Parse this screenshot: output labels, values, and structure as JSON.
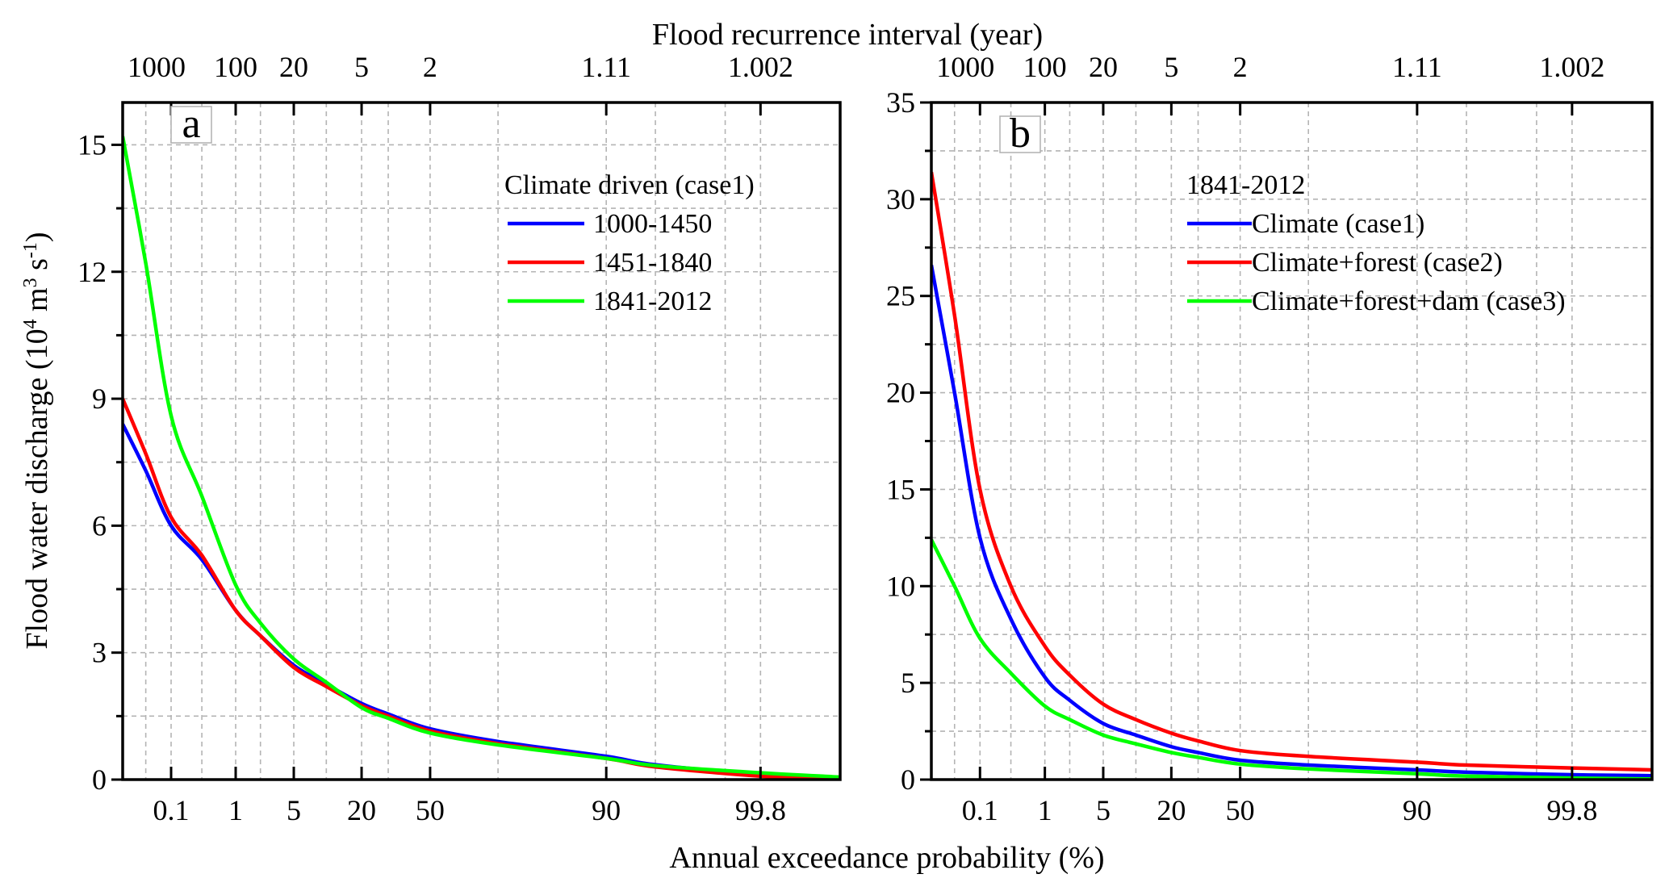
{
  "figure": {
    "top_axis_title": "Flood recurrence interval (year)",
    "bottom_axis_title": "Annual exceedance probability (%)",
    "y_axis_title": "Flood water discharge (10",
    "y_axis_title_sup1": "4",
    "y_axis_title_mid": " m",
    "y_axis_title_sup2": "3",
    "y_axis_title_mid2": " s",
    "y_axis_title_sup3": "-1",
    "y_axis_title_end": ")"
  },
  "colors": {
    "blue": "#0000ff",
    "red": "#ff0000",
    "green": "#00ff00",
    "grid": "#b4b4b4",
    "axis": "#000000"
  },
  "chart_data": [
    {
      "type": "line",
      "panel": "a",
      "legend_title": "Climate driven (case1)",
      "legend_placement": "top-right",
      "xlabel": "Annual exceedance probability (%)",
      "x_top_label": "Flood recurrence interval (year)",
      "ylabel": "Flood water discharge (10^4 m^3 s^-1)",
      "x_scale": "probability",
      "x_ticks": [
        0.1,
        1,
        5,
        20,
        50,
        90,
        99.8
      ],
      "x_tick_labels": [
        "0.1",
        "1",
        "5",
        "20",
        "50",
        "90",
        "99.8"
      ],
      "x_top_ticks": [
        0.1,
        1,
        5,
        20,
        50,
        90,
        99.8
      ],
      "x_top_tick_labels": [
        "1000",
        "100",
        "20",
        "5",
        "2",
        "1.11",
        "1.002"
      ],
      "ylim": [
        0,
        16
      ],
      "y_ticks": [
        0,
        3,
        6,
        9,
        12,
        15
      ],
      "y_tick_labels": [
        "0",
        "3",
        "6",
        "9",
        "12",
        "15"
      ],
      "grid": true,
      "x": [
        0.01,
        0.03,
        0.1,
        0.3,
        1,
        2,
        5,
        10,
        20,
        30,
        50,
        70,
        90,
        97,
        99.8,
        99.99
      ],
      "series": [
        {
          "name": "1000-1450",
          "color": "blue",
          "values": [
            8.4,
            7.3,
            6.0,
            5.2,
            4.0,
            3.4,
            2.7,
            2.25,
            1.8,
            1.55,
            1.2,
            0.9,
            0.55,
            0.35,
            0.12,
            0.02
          ]
        },
        {
          "name": "1451-1840",
          "color": "red",
          "values": [
            9.0,
            7.7,
            6.2,
            5.3,
            4.0,
            3.4,
            2.65,
            2.2,
            1.75,
            1.5,
            1.15,
            0.85,
            0.5,
            0.3,
            0.08,
            0.0
          ]
        },
        {
          "name": "1841-2012",
          "color": "green",
          "values": [
            15.2,
            12.2,
            8.6,
            6.7,
            4.6,
            3.7,
            2.85,
            2.3,
            1.7,
            1.45,
            1.1,
            0.82,
            0.5,
            0.33,
            0.16,
            0.06
          ]
        }
      ]
    },
    {
      "type": "line",
      "panel": "b",
      "legend_title": "1841-2012",
      "legend_placement": "top-right",
      "xlabel": "Annual exceedance probability (%)",
      "x_top_label": "Flood recurrence interval (year)",
      "ylabel": "Flood water discharge (10^4 m^3 s^-1)",
      "x_scale": "probability",
      "x_ticks": [
        0.1,
        1,
        5,
        20,
        50,
        90,
        99.8
      ],
      "x_tick_labels": [
        "0.1",
        "1",
        "5",
        "20",
        "50",
        "90",
        "99.8"
      ],
      "x_top_ticks": [
        0.1,
        1,
        5,
        20,
        50,
        90,
        99.8
      ],
      "x_top_tick_labels": [
        "1000",
        "100",
        "20",
        "5",
        "2",
        "1.11",
        "1.002"
      ],
      "ylim": [
        0,
        35
      ],
      "y_ticks": [
        0,
        5,
        10,
        15,
        20,
        25,
        30,
        35
      ],
      "y_tick_labels": [
        "0",
        "5",
        "10",
        "15",
        "20",
        "25",
        "30",
        "35"
      ],
      "grid": true,
      "x": [
        0.01,
        0.03,
        0.1,
        0.3,
        1,
        2,
        5,
        10,
        20,
        30,
        50,
        70,
        90,
        97,
        99.8,
        99.99
      ],
      "series": [
        {
          "name": "Climate (case1)",
          "color": "blue",
          "values": [
            26.6,
            20.0,
            12.5,
            8.3,
            5.3,
            4.1,
            2.9,
            2.3,
            1.7,
            1.4,
            1.0,
            0.75,
            0.5,
            0.38,
            0.25,
            0.2
          ]
        },
        {
          "name": "Climate+forest (case2)",
          "color": "red",
          "values": [
            31.4,
            24.0,
            15.0,
            10.0,
            6.9,
            5.4,
            3.9,
            3.1,
            2.4,
            2.0,
            1.5,
            1.2,
            0.9,
            0.75,
            0.6,
            0.5
          ]
        },
        {
          "name": "Climate+forest+dam (case3)",
          "color": "green",
          "values": [
            12.4,
            10.0,
            7.3,
            5.5,
            3.8,
            3.1,
            2.3,
            1.85,
            1.4,
            1.15,
            0.8,
            0.55,
            0.3,
            0.18,
            0.08,
            0.03
          ]
        }
      ]
    }
  ]
}
